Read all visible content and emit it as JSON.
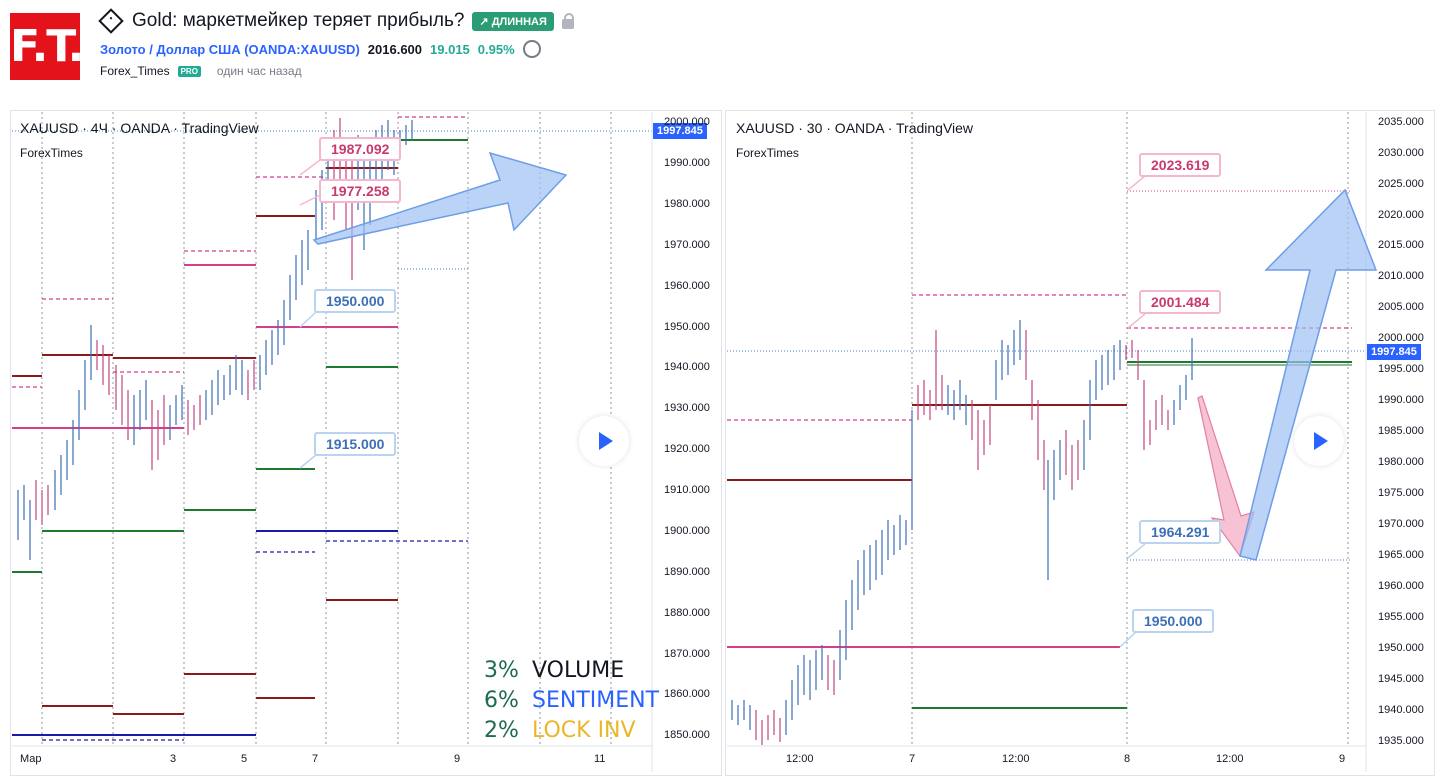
{
  "brand": {
    "logo": "F.T."
  },
  "idea": {
    "title": "Gold: маркетмейкер теряет прибыль?",
    "badge": "ДЛИННАЯ"
  },
  "symbol": {
    "name": "Золото / Доллар США (OANDA:XAUUSD)",
    "price": "2016.600",
    "change": "19.015",
    "change_pct": "0.95%"
  },
  "author": {
    "name": "Forex_Times",
    "pro": "PRO",
    "time": "один час назад"
  },
  "left_chart": {
    "header": "XAUUSD · 4Ч · OANDA · TradingView",
    "sub": "ForexTimes",
    "current_price": "1997.845",
    "y_ticks": [
      "2000.000",
      "1990.000",
      "1980.000",
      "1970.000",
      "1960.000",
      "1950.000",
      "1940.000",
      "1930.000",
      "1920.000",
      "1910.000",
      "1900.000",
      "1890.000",
      "1880.000",
      "1870.000",
      "1860.000",
      "1850.000"
    ],
    "x_ticks": [
      "Мар",
      "3",
      "5",
      "7",
      "9",
      "11"
    ],
    "callouts": [
      "1987.092",
      "1977.258",
      "1950.000",
      "1915.000"
    ],
    "legend": [
      {
        "pct": "3%",
        "label": "VOLUME",
        "color": "#131722"
      },
      {
        "pct": "6%",
        "label": "SENTIMENT",
        "color": "#2962ff"
      },
      {
        "pct": "2%",
        "label": "LOCK INV",
        "color": "#e8b828"
      }
    ]
  },
  "right_chart": {
    "header": "XAUUSD · 30 · OANDA · TradingView",
    "sub": "ForexTimes",
    "current_price": "1997.845",
    "y_ticks": [
      "2035.000",
      "2030.000",
      "2025.000",
      "2020.000",
      "2015.000",
      "2010.000",
      "2005.000",
      "2000.000",
      "1995.000",
      "1990.000",
      "1985.000",
      "1980.000",
      "1975.000",
      "1970.000",
      "1965.000",
      "1960.000",
      "1955.000",
      "1950.000",
      "1945.000",
      "1940.000",
      "1935.000"
    ],
    "x_ticks": [
      "12:00",
      "7",
      "12:00",
      "8",
      "12:00",
      "9"
    ],
    "callouts": [
      "2023.619",
      "2001.484",
      "1964.291",
      "1950.000"
    ]
  },
  "colors": {
    "accent": "#2962ff",
    "long": "#2a9d74",
    "brand": "#e3121b"
  }
}
